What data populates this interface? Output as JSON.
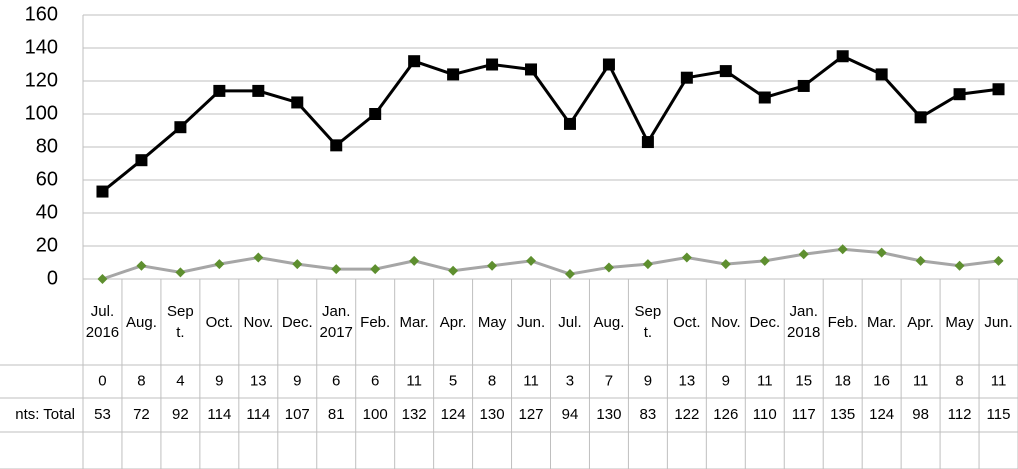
{
  "chart_data": {
    "type": "line",
    "categories": [
      "Jul. 2016",
      "Aug.",
      "Sept.",
      "Oct.",
      "Nov.",
      "Dec.",
      "Jan. 2017",
      "Feb.",
      "Mar.",
      "Apr.",
      "May",
      "Jun.",
      "Jul.",
      "Aug.",
      "Sept.",
      "Oct.",
      "Nov.",
      "Dec.",
      "Jan. 2018",
      "Feb.",
      "Mar.",
      "Apr.",
      "May",
      "Jun."
    ],
    "series": [
      {
        "color": "#a6a6a6",
        "marker_color": "#5e8f2f",
        "marker": "diamond",
        "values": [
          0,
          8,
          4,
          9,
          13,
          9,
          6,
          6,
          11,
          5,
          8,
          11,
          3,
          7,
          9,
          13,
          9,
          11,
          15,
          18,
          16,
          11,
          8,
          11
        ]
      },
      {
        "name": "nts: Total",
        "color": "#000000",
        "marker_color": "#000000",
        "marker": "square",
        "values": [
          53,
          72,
          92,
          114,
          114,
          107,
          81,
          100,
          132,
          124,
          130,
          127,
          94,
          130,
          83,
          122,
          126,
          110,
          117,
          135,
          124,
          98,
          112,
          115
        ]
      }
    ],
    "ylim": [
      0,
      160
    ],
    "yticks": [
      0,
      20,
      40,
      60,
      80,
      100,
      120,
      140,
      160
    ],
    "grid": true
  }
}
